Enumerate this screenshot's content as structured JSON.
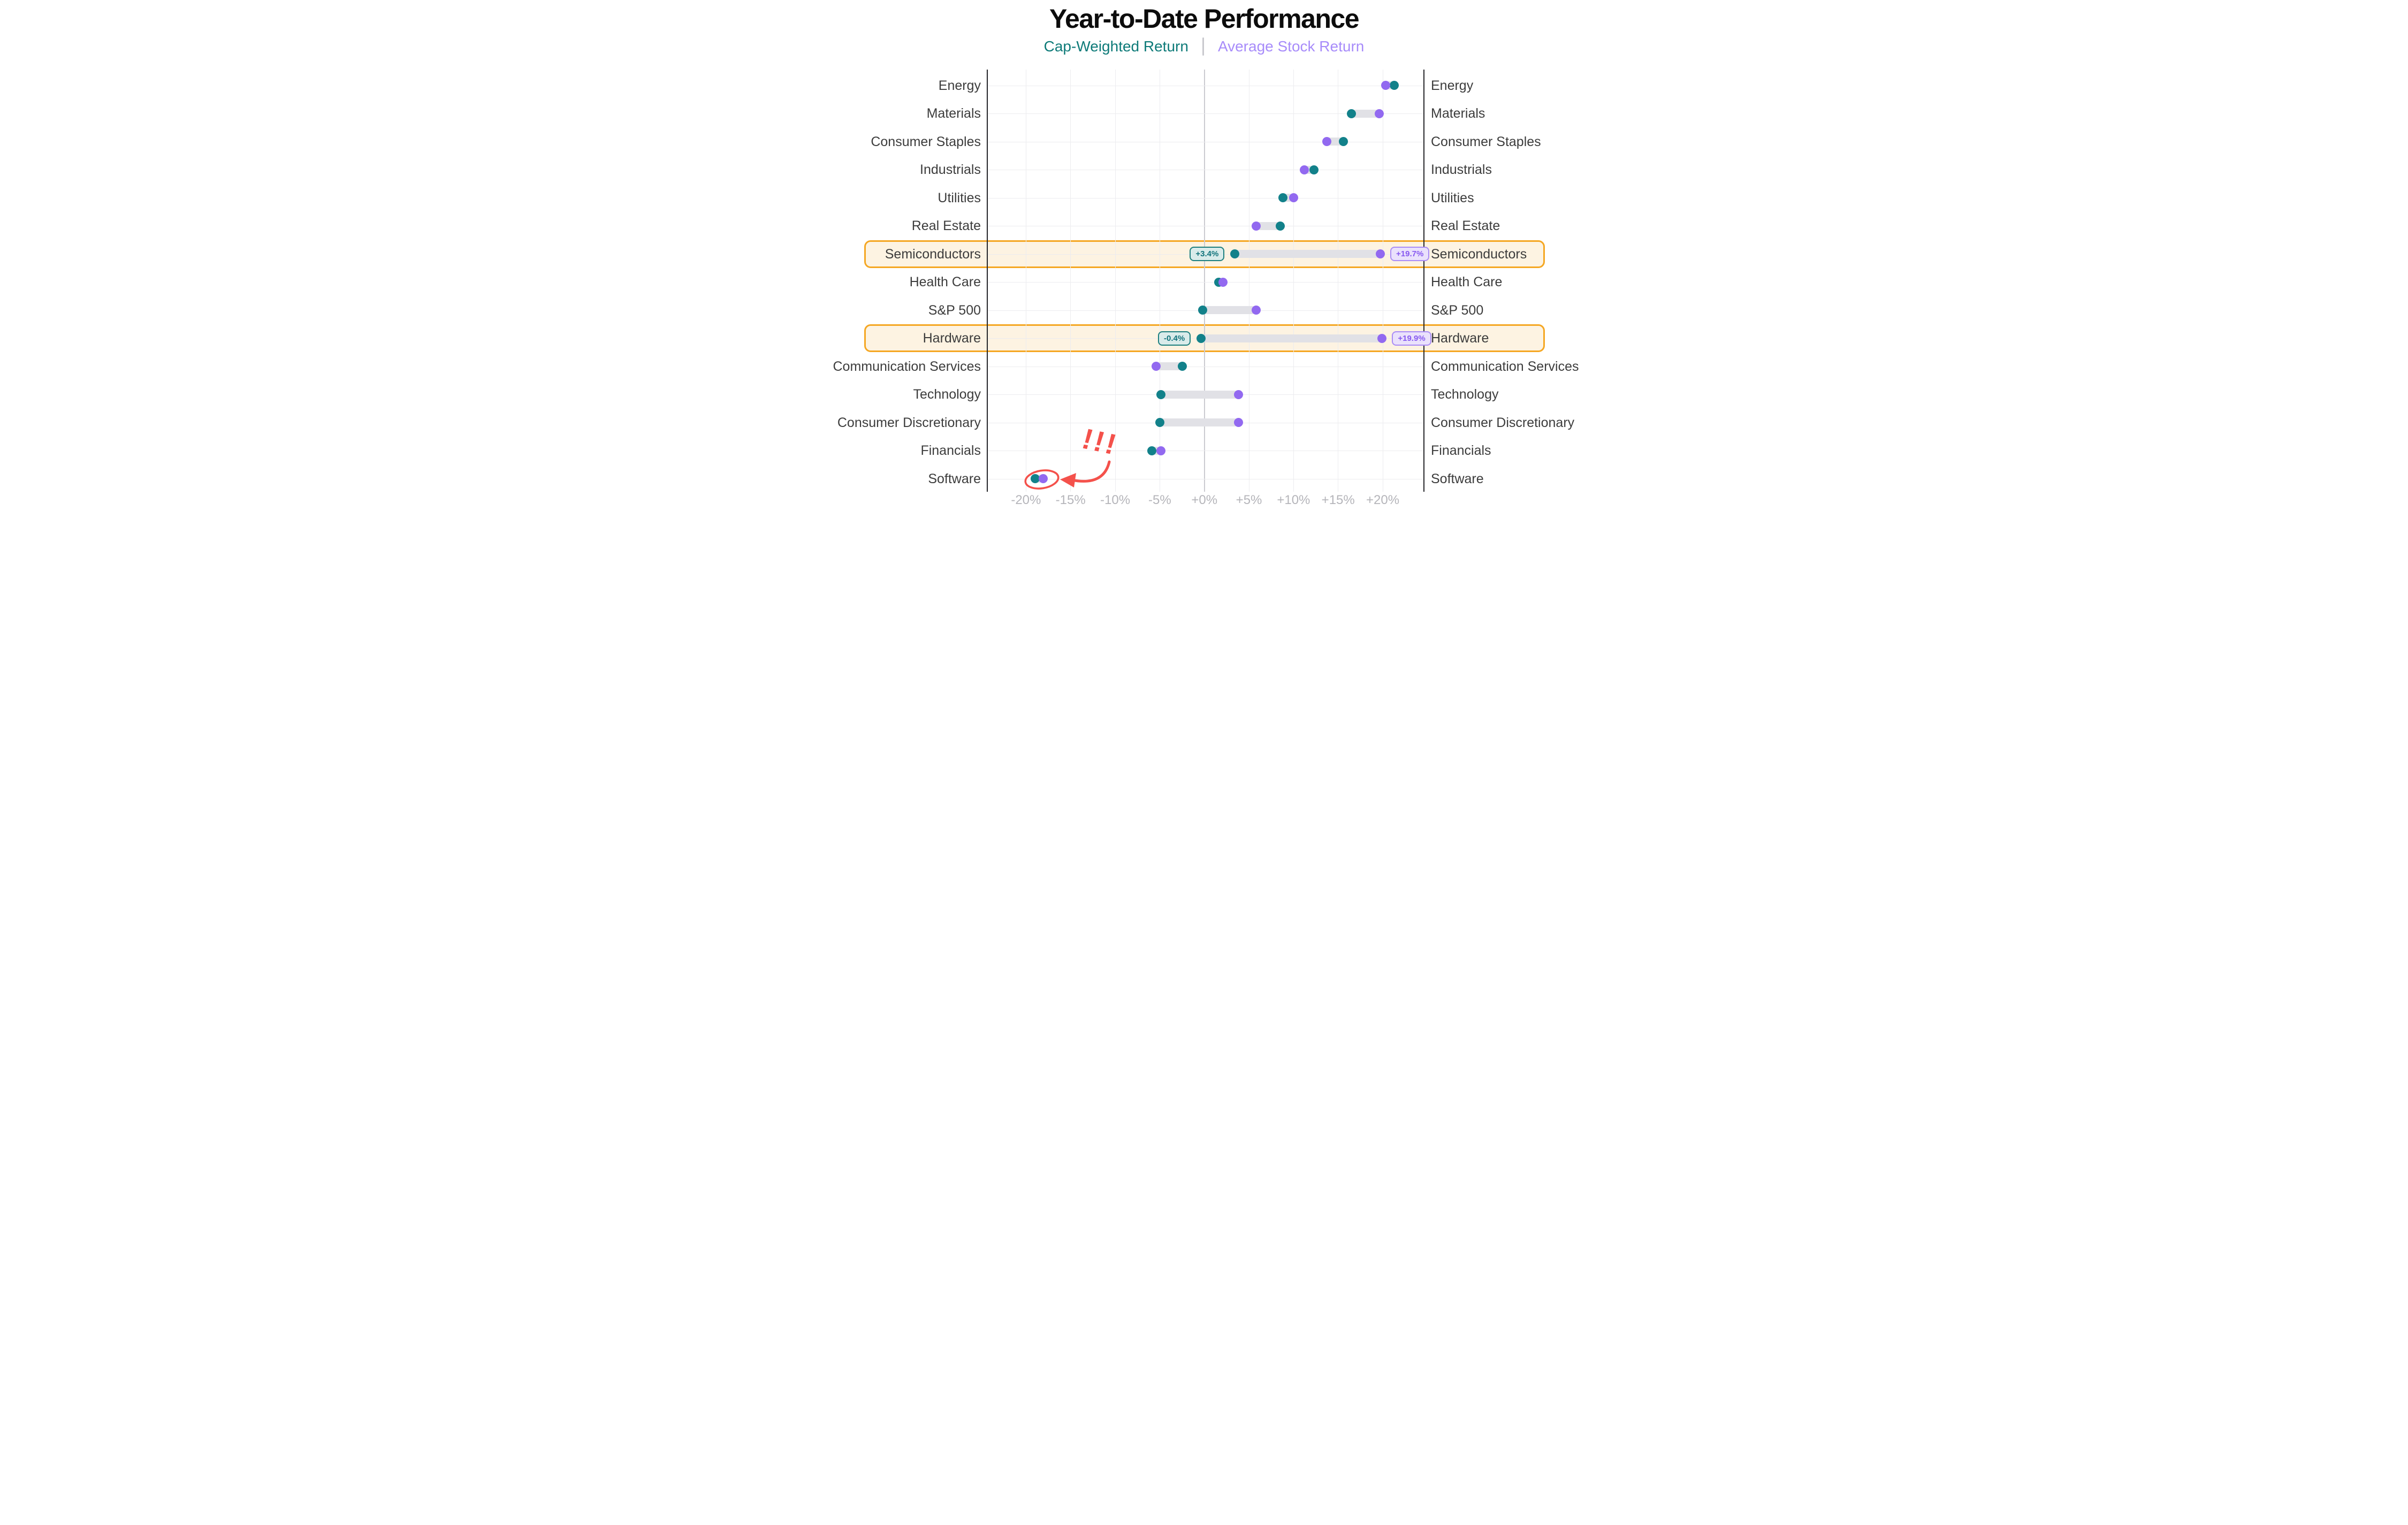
{
  "title": "Year-to-Date Performance",
  "legend": {
    "cap_weighted_label": "Cap-Weighted Return",
    "separator": "|",
    "average_stock_label": "Average Stock Return"
  },
  "annotation": {
    "exclamation": "!!!"
  },
  "colors": {
    "cap_weighted_dot": "#12818a",
    "average_stock_dot": "#9269f0",
    "legend_cap_text": "#0d7a78",
    "legend_avg_text": "#a78bfa",
    "connector_bar": "#e1e1e6",
    "highlight_fill": "#fdf3e2",
    "highlight_border": "#f5a723",
    "annotation_red": "#f4514b",
    "gridline": "#ececef",
    "zero_line": "#cbcbd1",
    "axis_tick_text": "#b5b5ba",
    "row_label_text": "#3c3c3c"
  },
  "chart_data": {
    "type": "dumbbell",
    "title": "Year-to-Date Performance",
    "series_names": [
      "Cap-Weighted Return",
      "Average Stock Return"
    ],
    "unit": "%",
    "x_axis": {
      "tick_labels": [
        "-20%",
        "-15%",
        "-10%",
        "-5%",
        "+0%",
        "+5%",
        "+10%",
        "+15%",
        "+20%"
      ],
      "tick_values": [
        -20,
        -15,
        -10,
        -5,
        0,
        5,
        10,
        15,
        20
      ],
      "range": [
        -24.3,
        24.6
      ],
      "grid": true
    },
    "legend_position": "top",
    "rows": [
      {
        "label": "Energy",
        "cap_weighted": 21.3,
        "average_stock": 20.3
      },
      {
        "label": "Materials",
        "cap_weighted": 16.5,
        "average_stock": 19.6
      },
      {
        "label": "Consumer Staples",
        "cap_weighted": 15.6,
        "average_stock": 13.7
      },
      {
        "label": "Industrials",
        "cap_weighted": 12.3,
        "average_stock": 11.2
      },
      {
        "label": "Utilities",
        "cap_weighted": 8.8,
        "average_stock": 10.0
      },
      {
        "label": "Real Estate",
        "cap_weighted": 8.5,
        "average_stock": 5.8
      },
      {
        "label": "Semiconductors",
        "cap_weighted": 3.4,
        "average_stock": 19.7,
        "highlight": true,
        "callout_cap": "+3.4%",
        "callout_avg": "+19.7%"
      },
      {
        "label": "Health Care",
        "cap_weighted": 1.6,
        "average_stock": 2.1
      },
      {
        "label": "S&P 500",
        "cap_weighted": -0.2,
        "average_stock": 5.8
      },
      {
        "label": "Hardware",
        "cap_weighted": -0.4,
        "average_stock": 19.9,
        "highlight": true,
        "callout_cap": "-0.4%",
        "callout_avg": "+19.9%"
      },
      {
        "label": "Communication Services",
        "cap_weighted": -2.5,
        "average_stock": -5.4
      },
      {
        "label": "Technology",
        "cap_weighted": -4.9,
        "average_stock": 3.8
      },
      {
        "label": "Consumer Discretionary",
        "cap_weighted": -5.0,
        "average_stock": 3.8
      },
      {
        "label": "Financials",
        "cap_weighted": -5.9,
        "average_stock": -4.9
      },
      {
        "label": "Software",
        "cap_weighted": -19.0,
        "average_stock": -18.1,
        "annotated": true
      }
    ]
  }
}
